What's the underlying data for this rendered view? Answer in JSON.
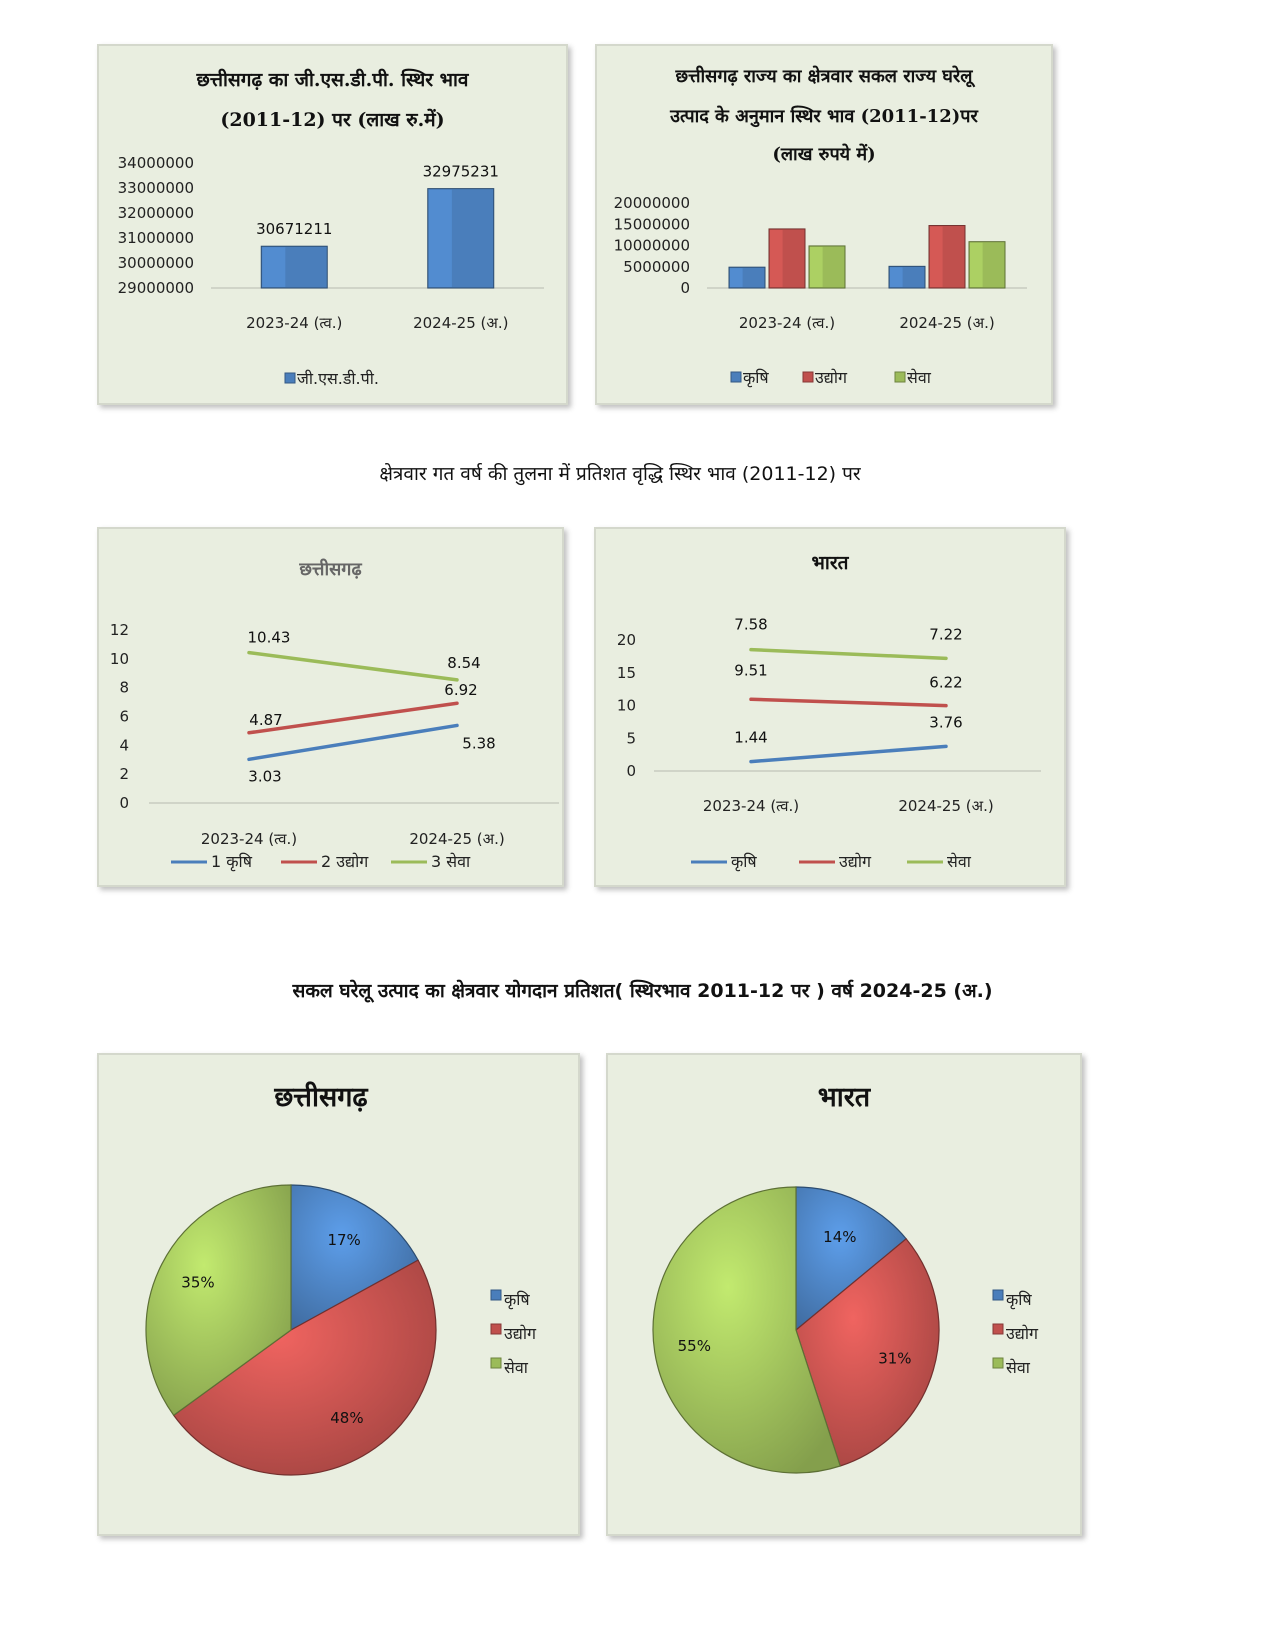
{
  "section_headings": {
    "growth": "क्षेत्रवार गत वर्ष की तुलना में प्रतिशत वृद्धि स्थिर भाव  (2011-12) पर",
    "share": "सकल  घरेलू  उत्पाद  का  क्षेत्रवार  योगदान  प्रतिशत( स्थिरभाव  2011-12  पर   ) वर्ष  2024-25 (अ.)"
  },
  "colors": {
    "krishi": "#4a7ebb",
    "udyog": "#c0504d",
    "seva": "#9bbb59",
    "panel_bg": "#e9eee0"
  },
  "chart_data": [
    {
      "id": "gsdp",
      "type": "bar",
      "title_line1": "छत्तीसगढ़ का जी.एस.डी.पी. स्थिर भाव",
      "title_line2": "(2011-12) पर  (लाख रु.में)",
      "categories": [
        "2023-24 (त्व.)",
        "2024-25 (अ.)"
      ],
      "series": [
        {
          "name": "जी.एस.डी.पी.",
          "values": [
            30671211,
            32975231
          ],
          "color": "#4a7ebb"
        }
      ],
      "yticks": [
        29000000,
        30000000,
        31000000,
        32000000,
        33000000,
        34000000
      ],
      "ylim": [
        29000000,
        34000000
      ],
      "legend_position": "bottom"
    },
    {
      "id": "sector_gsdp",
      "type": "bar",
      "title_line1": "छत्तीसगढ़ राज्य का क्षेत्रवार सकल राज्य घरेलू",
      "title_line2": "उत्पाद के अनुमान स्थिर भाव (2011-12)पर",
      "title_line3": "(लाख रुपये में)",
      "categories": [
        "2023-24 (त्व.)",
        "2024-25 (अ.)"
      ],
      "series": [
        {
          "name": "कृषि",
          "values": [
            4900000,
            5100000
          ],
          "color": "#4a7ebb"
        },
        {
          "name": "उद्योग",
          "values": [
            13900000,
            14700000
          ],
          "color": "#c0504d"
        },
        {
          "name": "सेवा",
          "values": [
            9900000,
            10900000
          ],
          "color": "#9bbb59"
        }
      ],
      "yticks": [
        0,
        5000000,
        10000000,
        15000000,
        20000000
      ],
      "ylim": [
        0,
        20000000
      ],
      "legend_position": "bottom"
    },
    {
      "id": "cg_growth",
      "type": "line",
      "title": "छत्तीसगढ़",
      "categories": [
        "2023-24 (त्व.)",
        "2024-25 (अ.)"
      ],
      "series": [
        {
          "name": "1 कृषि",
          "values": [
            3.03,
            5.38
          ],
          "color": "#4a7ebb"
        },
        {
          "name": "2 उद्योग",
          "values": [
            4.87,
            6.92
          ],
          "color": "#c0504d"
        },
        {
          "name": "3 सेवा",
          "values": [
            10.43,
            8.54
          ],
          "color": "#9bbb59"
        }
      ],
      "yticks": [
        0,
        2,
        4,
        6,
        8,
        10,
        12
      ],
      "ylim": [
        0,
        12
      ],
      "legend_position": "bottom"
    },
    {
      "id": "india_growth",
      "type": "line",
      "title": "भारत",
      "categories": [
        "2023-24 (त्व.)",
        "2024-25 (अ.)"
      ],
      "series": [
        {
          "name": "कृषि",
          "values": [
            1.44,
            3.76
          ],
          "plot_values": [
            1.44,
            3.76
          ],
          "color": "#4a7ebb"
        },
        {
          "name": "उद्योग",
          "values": [
            9.51,
            6.22
          ],
          "plot_values": [
            10.95,
            9.98
          ],
          "color": "#c0504d"
        },
        {
          "name": "सेवा",
          "values": [
            7.58,
            7.22
          ],
          "plot_values": [
            18.53,
            17.2
          ],
          "color": "#9bbb59"
        }
      ],
      "yticks": [
        0,
        5,
        10,
        15,
        20
      ],
      "ylim": [
        0,
        20
      ],
      "stacked": true,
      "legend_position": "bottom"
    },
    {
      "id": "cg_share",
      "type": "pie",
      "title": "छत्तीसगढ़",
      "labels": [
        "कृषि",
        "उद्योग",
        "सेवा"
      ],
      "values": [
        17,
        48,
        35
      ],
      "value_labels": [
        "17%",
        "48%",
        "35%"
      ],
      "colors": [
        "#4a7ebb",
        "#c0504d",
        "#9bbb59"
      ],
      "legend_position": "right"
    },
    {
      "id": "india_share",
      "type": "pie",
      "title": "भारत",
      "labels": [
        "कृषि",
        "उद्योग",
        "सेवा"
      ],
      "values": [
        14,
        31,
        55
      ],
      "value_labels": [
        "14%",
        "31%",
        "55%"
      ],
      "colors": [
        "#4a7ebb",
        "#c0504d",
        "#9bbb59"
      ],
      "legend_position": "right"
    }
  ]
}
